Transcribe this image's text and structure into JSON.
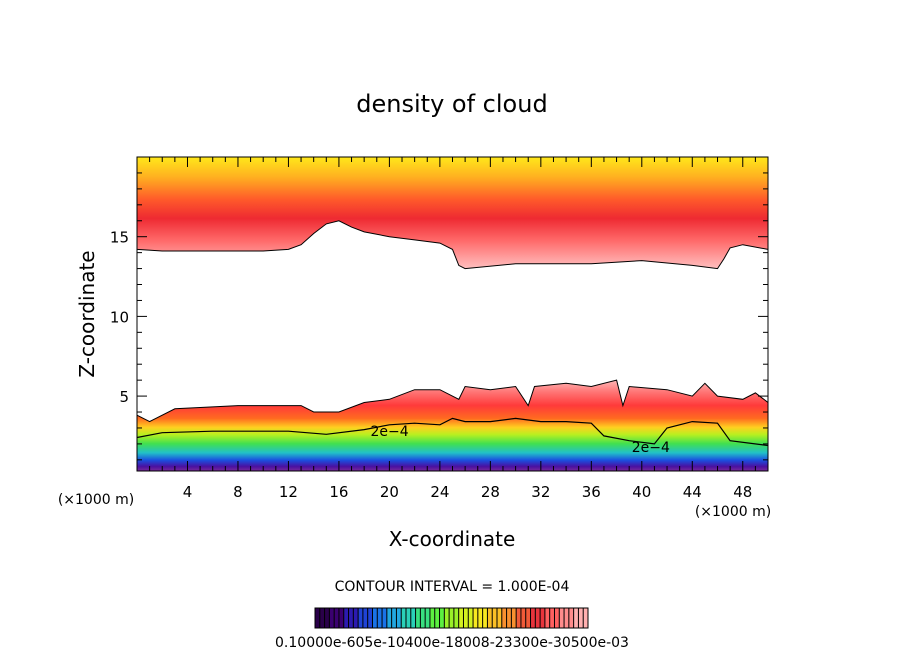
{
  "chart_data": {
    "type": "heatmap",
    "title": "density of cloud",
    "xlabel": "X-coordinate",
    "ylabel": "Z-coordinate",
    "x_unit": "(×1000 m)",
    "x_unit_right": "(×1000 m)",
    "xlim": [
      0,
      50
    ],
    "ylim": [
      0.3,
      20
    ],
    "x_ticks": [
      {
        "value": 4,
        "label": "4"
      },
      {
        "value": 8,
        "label": "8"
      },
      {
        "value": 12,
        "label": "12"
      },
      {
        "value": 16,
        "label": "16"
      },
      {
        "value": 20,
        "label": "20"
      },
      {
        "value": 24,
        "label": "24"
      },
      {
        "value": 28,
        "label": "28"
      },
      {
        "value": 32,
        "label": "32"
      },
      {
        "value": 36,
        "label": "36"
      },
      {
        "value": 40,
        "label": "40"
      },
      {
        "value": 44,
        "label": "44"
      },
      {
        "value": 48,
        "label": "48"
      }
    ],
    "y_ticks": [
      {
        "value": 5,
        "label": "5"
      },
      {
        "value": 10,
        "label": "10"
      },
      {
        "value": 15,
        "label": "15"
      }
    ],
    "contour_labels": [
      {
        "x": 18.5,
        "z": 2.8,
        "text": "2e−4"
      },
      {
        "x": 39.2,
        "z": 1.8,
        "text": "2e−4"
      }
    ],
    "upper_cloud_base": [
      [
        0,
        14.2
      ],
      [
        2,
        14.1
      ],
      [
        10,
        14.1
      ],
      [
        12,
        14.2
      ],
      [
        13,
        14.5
      ],
      [
        14,
        15.2
      ],
      [
        15,
        15.8
      ],
      [
        16,
        16.0
      ],
      [
        17,
        15.6
      ],
      [
        18,
        15.3
      ],
      [
        20,
        15.0
      ],
      [
        22,
        14.8
      ],
      [
        24,
        14.6
      ],
      [
        25,
        14.2
      ],
      [
        25.5,
        13.2
      ],
      [
        26,
        13.0
      ],
      [
        30,
        13.3
      ],
      [
        36,
        13.3
      ],
      [
        40,
        13.5
      ],
      [
        44,
        13.2
      ],
      [
        46,
        13.0
      ],
      [
        46.5,
        13.6
      ],
      [
        47,
        14.3
      ],
      [
        48,
        14.5
      ],
      [
        50,
        14.2
      ]
    ],
    "lower_cloud_top": [
      [
        0,
        3.8
      ],
      [
        1,
        3.4
      ],
      [
        3,
        4.2
      ],
      [
        8,
        4.4
      ],
      [
        13,
        4.4
      ],
      [
        14,
        4.0
      ],
      [
        16,
        4.0
      ],
      [
        18,
        4.6
      ],
      [
        20,
        4.8
      ],
      [
        22,
        5.4
      ],
      [
        24,
        5.4
      ],
      [
        25.5,
        4.8
      ],
      [
        26,
        5.6
      ],
      [
        28,
        5.4
      ],
      [
        30,
        5.6
      ],
      [
        31,
        4.4
      ],
      [
        31.5,
        5.6
      ],
      [
        34,
        5.8
      ],
      [
        36,
        5.6
      ],
      [
        38,
        6.0
      ],
      [
        38.5,
        4.4
      ],
      [
        39,
        5.6
      ],
      [
        42,
        5.4
      ],
      [
        44,
        5.0
      ],
      [
        45,
        5.8
      ],
      [
        46,
        5.0
      ],
      [
        48,
        4.8
      ],
      [
        49,
        5.2
      ],
      [
        50,
        4.6
      ]
    ],
    "contour_2e4": [
      [
        0,
        2.4
      ],
      [
        2,
        2.7
      ],
      [
        6,
        2.8
      ],
      [
        12,
        2.8
      ],
      [
        15,
        2.6
      ],
      [
        18,
        2.9
      ],
      [
        20,
        3.2
      ],
      [
        22,
        3.3
      ],
      [
        24,
        3.2
      ],
      [
        25,
        3.6
      ],
      [
        26,
        3.4
      ],
      [
        28,
        3.4
      ],
      [
        30,
        3.6
      ],
      [
        32,
        3.4
      ],
      [
        34,
        3.4
      ],
      [
        36,
        3.3
      ],
      [
        37,
        2.5
      ],
      [
        39,
        2.2
      ],
      [
        41,
        2.0
      ],
      [
        42,
        3.0
      ],
      [
        44,
        3.4
      ],
      [
        46,
        3.3
      ],
      [
        47,
        2.2
      ],
      [
        50,
        1.9
      ]
    ],
    "colorbar": {
      "label": "CONTOUR INTERVAL = 1.000E-04",
      "tick_text": "0.10000e-605e-10400e-18008-23300e-30500e-03",
      "colors": [
        "#2a004a",
        "#3a0070",
        "#2c1bb0",
        "#1f43d6",
        "#1a73e8",
        "#22a7e0",
        "#2ad0b8",
        "#38e080",
        "#5cf040",
        "#9af028",
        "#d4f020",
        "#f8e820",
        "#fbbf26",
        "#f89030",
        "#f05a38",
        "#e8343c",
        "#ff6060",
        "#ff8c8c",
        "#ffb0b0"
      ]
    }
  }
}
